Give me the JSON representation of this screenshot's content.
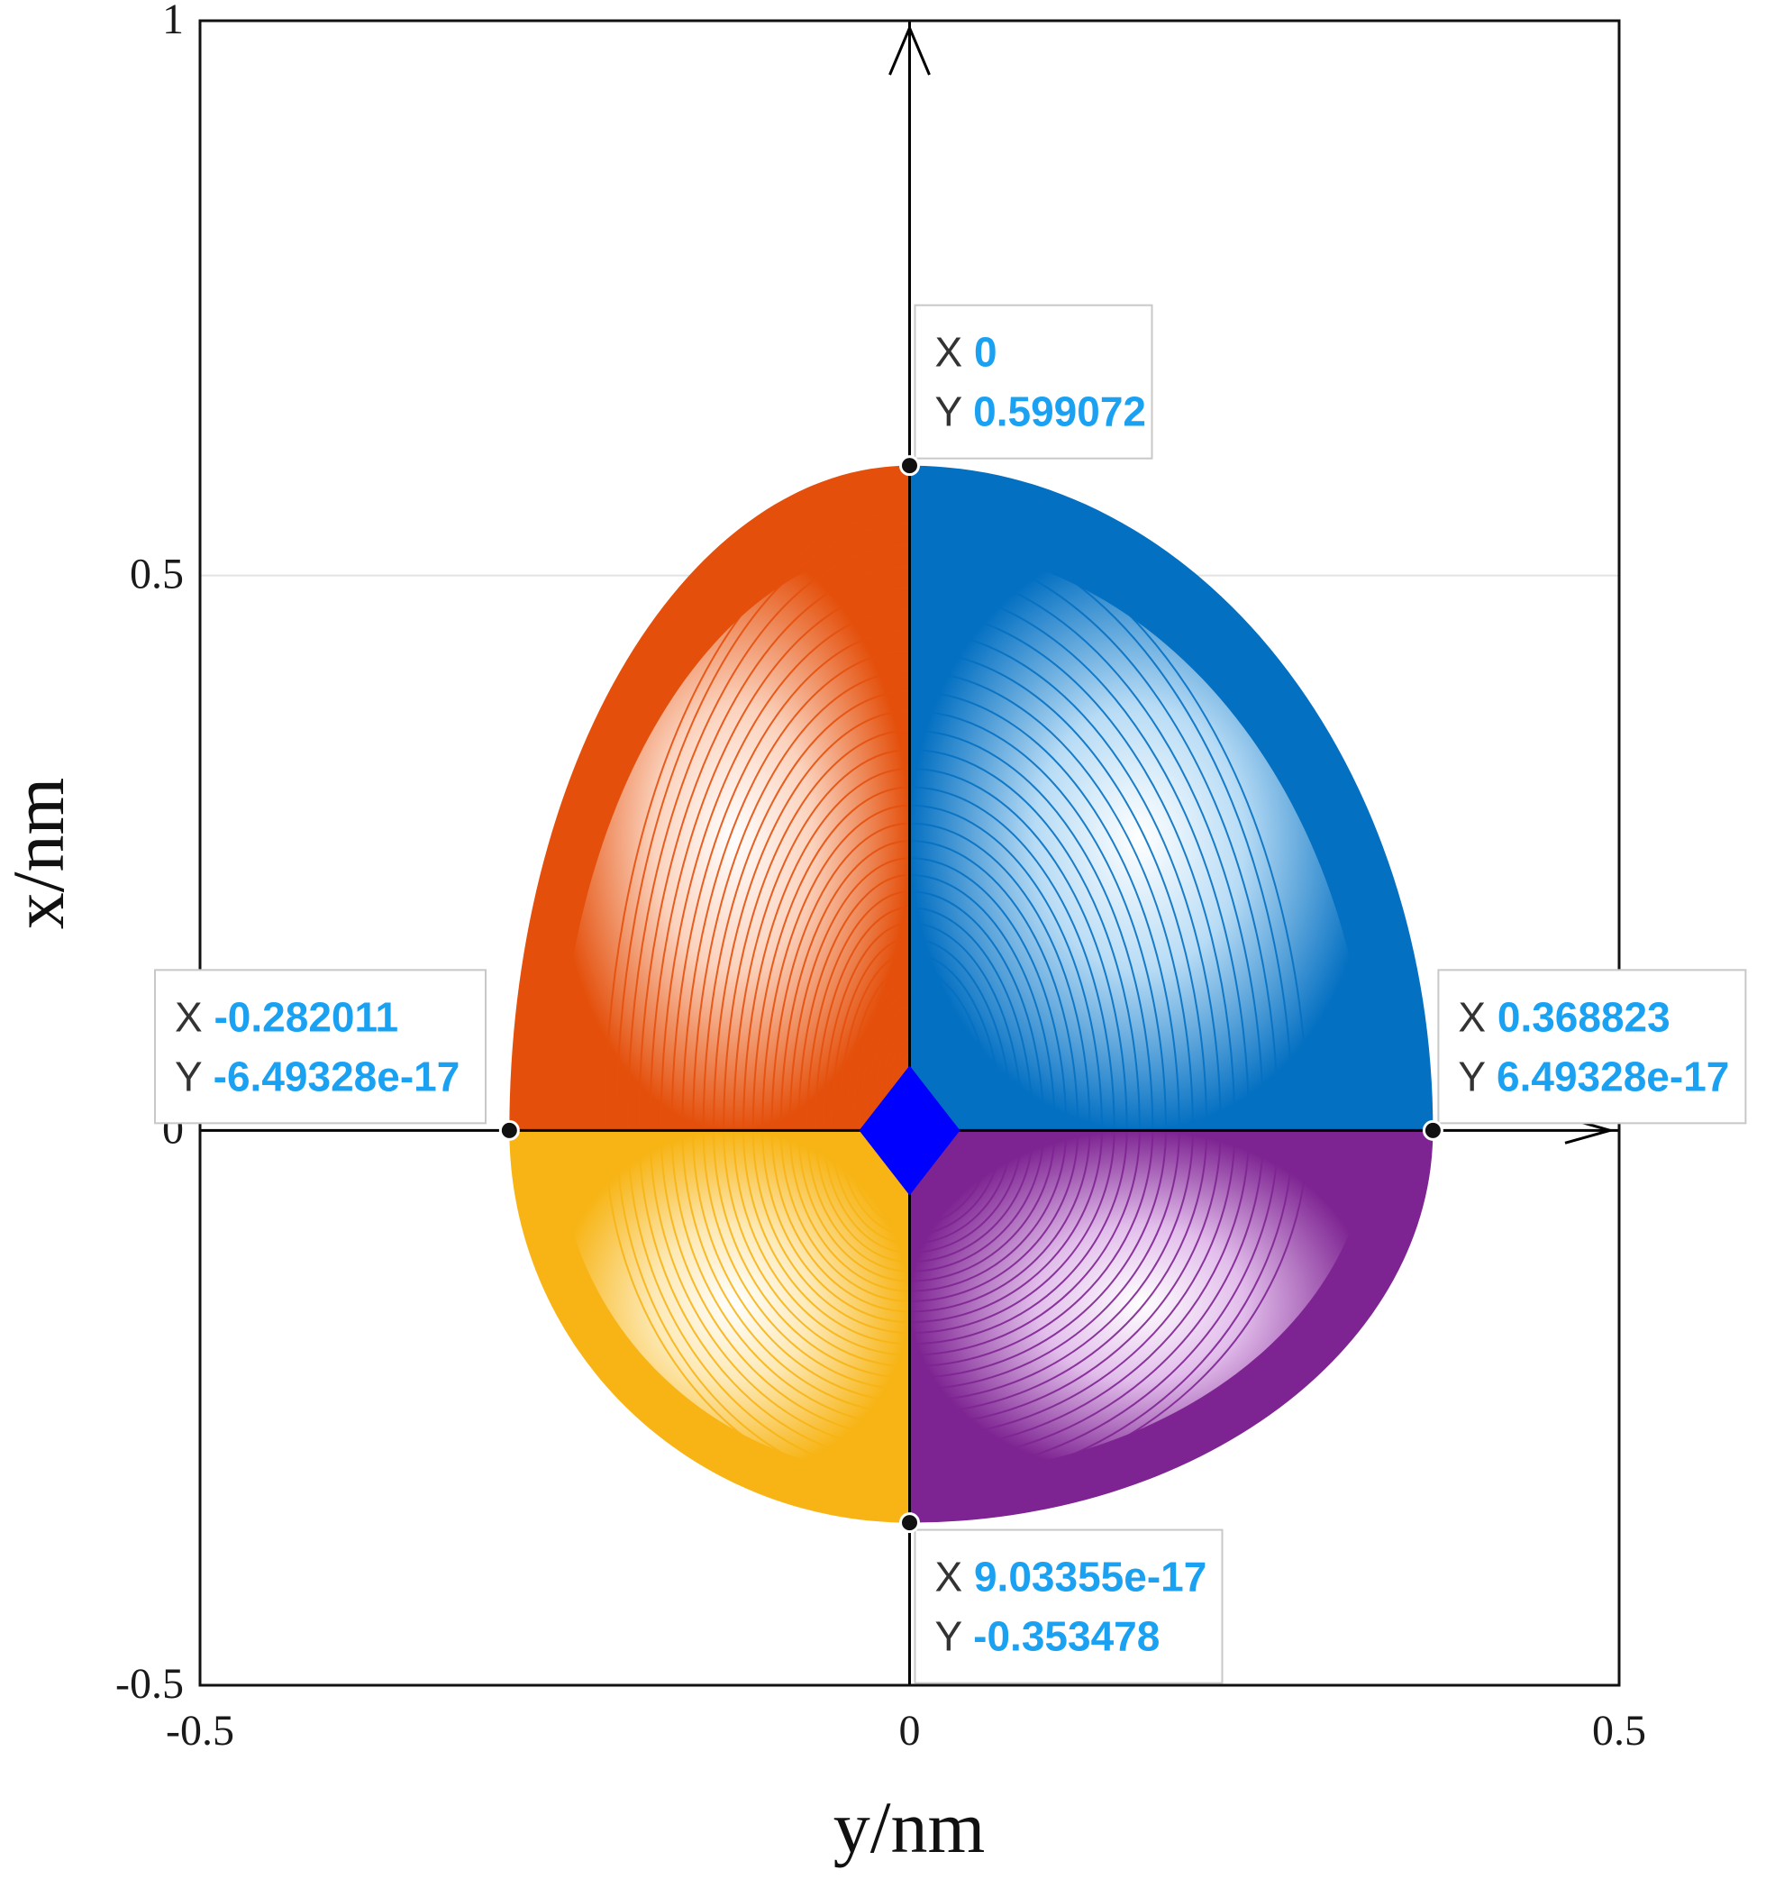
{
  "chart_data": {
    "type": "area",
    "xlabel": "y/nm",
    "ylabel": "x/nm",
    "xlim": [
      -0.5,
      0.5
    ],
    "ylim": [
      -0.5,
      1
    ],
    "x_ticks": [
      "-0.5",
      "0",
      "0.5"
    ],
    "y_ticks": [
      "-0.5",
      "0",
      "0.5",
      "1"
    ],
    "grid": true,
    "extents": {
      "top": 0.599072,
      "bottom": -0.353478,
      "left": -0.282011,
      "right": 0.368823
    },
    "quadrants": [
      {
        "quadrant": "upper-left",
        "color": "#e4500c"
      },
      {
        "quadrant": "upper-right",
        "color": "#0470c2"
      },
      {
        "quadrant": "lower-left",
        "color": "#f7b414"
      },
      {
        "quadrant": "lower-right",
        "color": "#7e2492"
      }
    ],
    "center_marker": {
      "shape": "diamond",
      "color": "#0000ff",
      "x": 0,
      "y": 0
    },
    "datatips": [
      {
        "x": 0,
        "y": 0.599072,
        "x_label": "X",
        "y_label": "Y",
        "x_text": "0",
        "y_text": "0.599072",
        "placement": "top-right"
      },
      {
        "x": -0.282011,
        "y": 0,
        "x_label": "X",
        "y_label": "Y",
        "x_text": "-0.282011",
        "y_text": "-6.49328e-17",
        "placement": "top-left"
      },
      {
        "x": 0.368823,
        "y": 0,
        "x_label": "X",
        "y_label": "Y",
        "x_text": "0.368823",
        "y_text": "6.49328e-17",
        "placement": "top-right"
      },
      {
        "x": 0,
        "y": -0.353478,
        "x_label": "X",
        "y_label": "Y",
        "x_text": "9.03355e-17",
        "y_text": "-0.353478",
        "placement": "bottom-right"
      }
    ]
  }
}
